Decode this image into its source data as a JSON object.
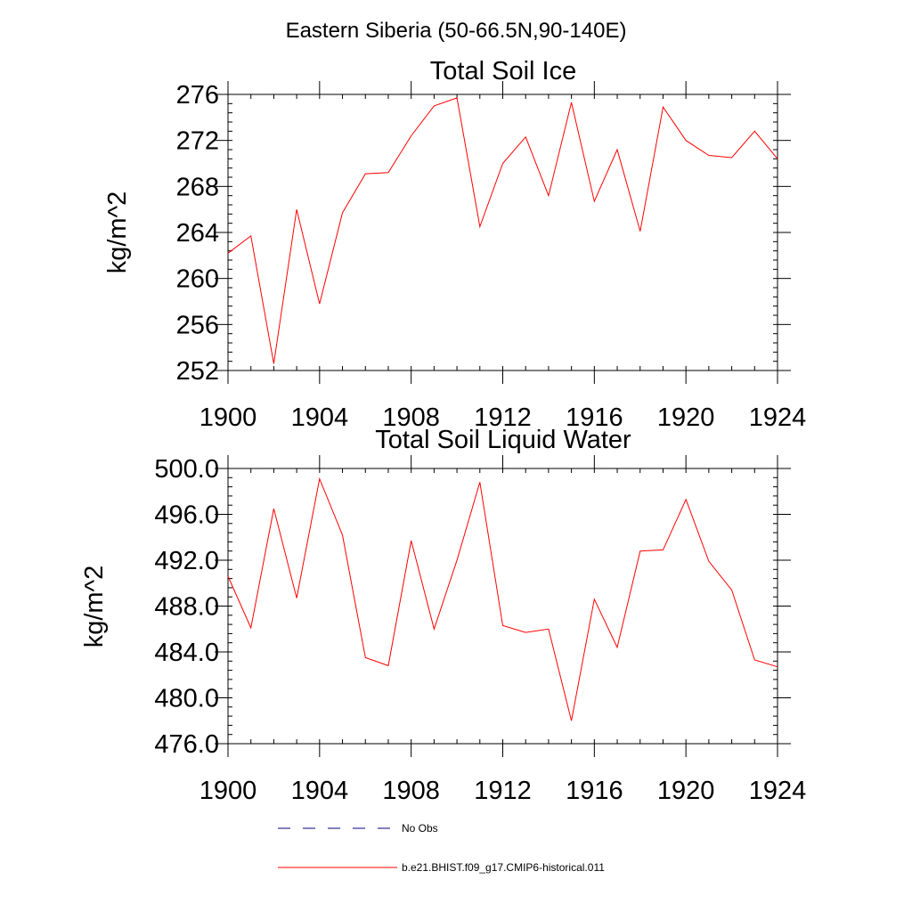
{
  "figure": {
    "title": "Eastern Siberia (50-66.5N,90-140E)",
    "line_color": "#ff0000",
    "obs_color": "#000080",
    "legend": {
      "obs_label": "No Obs",
      "model_label": "b.e21.BHIST.f09_g17.CMIP6-historical.011"
    }
  },
  "chart_data": [
    {
      "type": "line",
      "title": "Total Soil Ice",
      "ylabel": "kg/m^2",
      "xlabel": "",
      "xlim": [
        1900,
        1924
      ],
      "ylim": [
        252,
        276
      ],
      "x_ticks": [
        "1900",
        "1904",
        "1908",
        "1912",
        "1916",
        "1920",
        "1924"
      ],
      "y_ticks": [
        "252",
        "256",
        "260",
        "264",
        "268",
        "272",
        "276"
      ],
      "grid": false,
      "series": [
        {
          "name": "b.e21.BHIST.f09_g17.CMIP6-historical.011",
          "x": [
            1900,
            1901,
            1902,
            1903,
            1904,
            1905,
            1906,
            1907,
            1908,
            1909,
            1910,
            1911,
            1912,
            1913,
            1914,
            1915,
            1916,
            1917,
            1918,
            1919,
            1920,
            1921,
            1922,
            1923,
            1924
          ],
          "y": [
            262.2,
            263.7,
            252.6,
            266.0,
            257.8,
            265.7,
            269.1,
            269.2,
            272.4,
            275.0,
            275.7,
            264.5,
            270.0,
            272.3,
            267.2,
            275.3,
            266.7,
            271.2,
            264.1,
            274.9,
            272.0,
            270.7,
            270.5,
            272.8,
            270.4
          ]
        }
      ]
    },
    {
      "type": "line",
      "title": "Total Soil Liquid Water",
      "ylabel": "kg/m^2",
      "xlabel": "",
      "xlim": [
        1900,
        1924
      ],
      "ylim": [
        476,
        500
      ],
      "x_ticks": [
        "1900",
        "1904",
        "1908",
        "1912",
        "1916",
        "1920",
        "1924"
      ],
      "y_ticks": [
        "476.0",
        "480.0",
        "484.0",
        "488.0",
        "492.0",
        "496.0",
        "500.0"
      ],
      "grid": false,
      "series": [
        {
          "name": "b.e21.BHIST.f09_g17.CMIP6-historical.011",
          "x": [
            1900,
            1901,
            1902,
            1903,
            1904,
            1905,
            1906,
            1907,
            1908,
            1909,
            1910,
            1911,
            1912,
            1913,
            1914,
            1915,
            1916,
            1917,
            1918,
            1919,
            1920,
            1921,
            1922,
            1923,
            1924
          ],
          "y": [
            490.6,
            486.1,
            496.5,
            488.7,
            499.1,
            494.2,
            483.5,
            482.8,
            493.7,
            486.0,
            492.0,
            498.8,
            486.3,
            485.7,
            486.0,
            478.0,
            488.6,
            484.4,
            492.8,
            492.9,
            497.3,
            491.9,
            489.4,
            483.3,
            482.7
          ]
        }
      ]
    }
  ]
}
